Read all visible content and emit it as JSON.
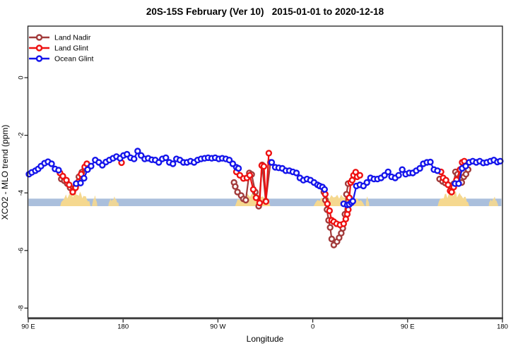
{
  "title": "20S-15S February (Ver 10)   2015-01-01 to 2020-12-18",
  "legend": {
    "position": "top-left",
    "items": [
      {
        "label": "Land Nadir",
        "color": "#A23B3B"
      },
      {
        "label": "Land Glint",
        "color": "#EE1111"
      },
      {
        "label": "Ocean Glint",
        "color": "#1414EB"
      }
    ]
  },
  "axes": {
    "x": {
      "label": "Longitude"
    },
    "y": {
      "label": "XCO2 - MLO trend (ppm)"
    }
  },
  "chart_data": {
    "type": "line",
    "marker": "open-circle",
    "grid": false,
    "title": "20S-15S February (Ver 10)  2015-01-01 to 2020-12-18",
    "xlabel": "Longitude",
    "ylabel": "XCO2 - MLO trend (ppm)",
    "xlim": [
      90,
      540
    ],
    "ylim": [
      -8.34,
      1.79
    ],
    "x_tick_values": [
      90,
      180,
      270,
      360,
      450,
      540
    ],
    "x_tick_labels": [
      "90 E",
      "180",
      "90 W",
      "0",
      "90 E",
      "180"
    ],
    "y_tick_values": [
      0,
      -2,
      -4,
      -6,
      -8
    ],
    "y_tick_labels": [
      "0",
      "-2",
      "-4",
      "-6",
      "-8"
    ],
    "ocean_band": {
      "y_top": -4.2,
      "y_bottom": -4.46,
      "color": "#AABFDC"
    },
    "land_color": "#F5D88F",
    "land_bands": [
      {
        "x0": 120.3,
        "x1": 149.0,
        "peak": -4.03
      },
      {
        "x0": 150.5,
        "x1": 155.5,
        "peak": -4.18,
        "minor": true
      },
      {
        "x0": 166.0,
        "x1": 176.0,
        "peak": -4.2,
        "minor": true
      },
      {
        "x0": 286.3,
        "x1": 319.7,
        "peak": -4.07
      },
      {
        "x0": 360.8,
        "x1": 409.4,
        "peak": -4.08
      },
      {
        "x0": 410.3,
        "x1": 413.6,
        "peak": -4.18,
        "minor": true
      },
      {
        "x0": 478.5,
        "x1": 508.5,
        "peak": -4.03
      },
      {
        "x0": 527.0,
        "x1": 536.0,
        "peak": -4.2,
        "minor": true
      }
    ],
    "series": [
      {
        "name": "Land Nadir",
        "color": "#A23B3B",
        "segments": [
          [
            [
              121.4,
              -3.52
            ],
            [
              124.2,
              -3.58
            ],
            [
              127.0,
              -3.68
            ],
            [
              129.7,
              -3.82
            ],
            [
              132.5,
              -3.92
            ],
            [
              135.2,
              -3.75
            ],
            [
              138.0,
              -3.44
            ],
            [
              140.9,
              -3.28
            ],
            [
              143.8,
              -3.15
            ]
          ],
          [
            [
              285.3,
              -3.64
            ],
            [
              286.4,
              -3.78
            ],
            [
              288.6,
              -3.97
            ],
            [
              292.0,
              -4.09
            ],
            [
              294.2,
              -4.21
            ],
            [
              296.4,
              -4.25
            ],
            [
              299.8,
              -3.31
            ],
            [
              302.0,
              -3.36
            ],
            [
              305.4,
              -3.97
            ],
            [
              308.7,
              -4.46
            ],
            [
              312.0,
              -3.03
            ],
            [
              315.4,
              -4.29
            ],
            [
              319.8,
              -2.94
            ]
          ],
          [
            [
              370.5,
              -3.97
            ],
            [
              372.0,
              -4.25
            ],
            [
              373.5,
              -4.58
            ],
            [
              375.0,
              -4.95
            ],
            [
              376.5,
              -5.2
            ],
            [
              378.0,
              -5.6
            ],
            [
              380.0,
              -5.81
            ],
            [
              383.0,
              -5.69
            ],
            [
              385.0,
              -5.56
            ],
            [
              387.0,
              -5.4
            ],
            [
              388.5,
              -5.23
            ],
            [
              390.5,
              -4.74
            ],
            [
              392.0,
              -4.05
            ],
            [
              393.5,
              -3.68
            ]
          ],
          [
            [
              480.4,
              -3.52
            ],
            [
              483.1,
              -3.6
            ],
            [
              485.8,
              -3.66
            ],
            [
              488.5,
              -3.72
            ],
            [
              491.2,
              -3.78
            ],
            [
              494.0,
              -3.68
            ],
            [
              495.4,
              -3.27
            ],
            [
              497.4,
              -3.35
            ],
            [
              500.1,
              -3.52
            ],
            [
              501.4,
              -3.64
            ],
            [
              503.4,
              -3.44
            ],
            [
              505.4,
              -3.35
            ],
            [
              507.4,
              -3.19
            ]
          ]
        ]
      },
      {
        "name": "Land Glint",
        "color": "#EE1111",
        "segments": [
          [
            [
              120.1,
              -3.31
            ],
            [
              122.8,
              -3.42
            ],
            [
              126.2,
              -3.56
            ],
            [
              128.8,
              -3.72
            ],
            [
              132.2,
              -3.97
            ],
            [
              134.9,
              -3.82
            ],
            [
              137.5,
              -3.62
            ],
            [
              140.2,
              -3.35
            ],
            [
              143.6,
              -3.1
            ],
            [
              145.6,
              -2.99
            ]
          ],
          [
            [
              178.5,
              -2.95
            ]
          ],
          [
            [
              287.5,
              -3.27
            ],
            [
              290.8,
              -3.39
            ],
            [
              294.2,
              -3.5
            ],
            [
              297.5,
              -3.48
            ],
            [
              300.2,
              -3.39
            ],
            [
              303.5,
              -3.88
            ],
            [
              306.2,
              -4.17
            ],
            [
              309.6,
              -4.35
            ],
            [
              311.6,
              -3.05
            ],
            [
              313.6,
              -3.08
            ],
            [
              315.6,
              -4.3
            ],
            [
              318.3,
              -2.62
            ]
          ],
          [
            [
              371.9,
              -4.05
            ],
            [
              373.9,
              -4.38
            ],
            [
              375.9,
              -4.62
            ],
            [
              377.9,
              -4.95
            ],
            [
              379.9,
              -5.0
            ],
            [
              382.6,
              -5.07
            ],
            [
              385.9,
              -5.11
            ],
            [
              389.3,
              -5.07
            ],
            [
              391.3,
              -4.91
            ],
            [
              392.7,
              -4.74
            ],
            [
              393.7,
              -4.58
            ],
            [
              394.7,
              -4.17
            ],
            [
              396.0,
              -3.64
            ],
            [
              397.4,
              -3.56
            ],
            [
              398.7,
              -3.39
            ],
            [
              400.7,
              -3.28
            ],
            [
              402.1,
              -3.44
            ],
            [
              404.7,
              -3.39
            ]
          ],
          [
            [
              481.7,
              -3.27
            ],
            [
              483.7,
              -3.48
            ],
            [
              486.4,
              -3.56
            ],
            [
              488.4,
              -3.72
            ],
            [
              490.4,
              -3.93
            ],
            [
              491.8,
              -3.97
            ],
            [
              493.8,
              -3.8
            ],
            [
              496.4,
              -3.55
            ],
            [
              499.8,
              -3.19
            ],
            [
              501.8,
              -2.94
            ],
            [
              503.8,
              -2.9
            ]
          ]
        ]
      },
      {
        "name": "Ocean Glint",
        "color": "#1414EB",
        "segments": [
          [
            [
              90.7,
              -3.35
            ],
            [
              93.3,
              -3.29
            ],
            [
              96.7,
              -3.23
            ],
            [
              99.4,
              -3.17
            ],
            [
              102.1,
              -3.07
            ],
            [
              105.4,
              -2.97
            ],
            [
              108.7,
              -2.92
            ],
            [
              112.1,
              -2.99
            ],
            [
              115.4,
              -3.17
            ],
            [
              118.8,
              -3.21
            ]
          ],
          [
            [
              135.5,
              -3.68
            ],
            [
              139.6,
              -3.66
            ],
            [
              142.9,
              -3.49
            ],
            [
              146.3,
              -3.19
            ],
            [
              149.6,
              -3.07
            ],
            [
              153.6,
              -2.86
            ],
            [
              157.0,
              -2.94
            ],
            [
              160.3,
              -3.04
            ],
            [
              163.7,
              -2.93
            ],
            [
              167.0,
              -2.86
            ],
            [
              170.4,
              -2.8
            ],
            [
              173.7,
              -2.74
            ],
            [
              177.1,
              -2.8
            ],
            [
              180.4,
              -2.7
            ],
            [
              183.7,
              -2.66
            ],
            [
              187.1,
              -2.78
            ],
            [
              190.4,
              -2.82
            ],
            [
              193.8,
              -2.55
            ],
            [
              197.1,
              -2.7
            ],
            [
              200.5,
              -2.82
            ],
            [
              203.8,
              -2.8
            ],
            [
              207.2,
              -2.85
            ],
            [
              210.5,
              -2.86
            ],
            [
              213.9,
              -2.94
            ],
            [
              217.2,
              -2.82
            ],
            [
              220.6,
              -2.78
            ],
            [
              223.9,
              -2.94
            ],
            [
              227.3,
              -2.99
            ],
            [
              230.6,
              -2.82
            ],
            [
              233.9,
              -2.86
            ],
            [
              237.3,
              -2.94
            ],
            [
              240.6,
              -2.94
            ],
            [
              244.0,
              -2.9
            ],
            [
              247.3,
              -2.94
            ],
            [
              250.7,
              -2.86
            ],
            [
              254.0,
              -2.82
            ],
            [
              257.4,
              -2.8
            ],
            [
              260.7,
              -2.78
            ],
            [
              264.1,
              -2.8
            ],
            [
              267.4,
              -2.78
            ],
            [
              270.8,
              -2.82
            ],
            [
              274.1,
              -2.8
            ],
            [
              277.5,
              -2.82
            ],
            [
              280.8,
              -2.86
            ],
            [
              284.1,
              -2.99
            ],
            [
              287.5,
              -3.11
            ],
            [
              289.5,
              -3.15
            ]
          ],
          [
            [
              321.0,
              -2.94
            ],
            [
              324.4,
              -3.11
            ],
            [
              327.7,
              -3.13
            ],
            [
              331.1,
              -3.15
            ],
            [
              334.4,
              -3.23
            ],
            [
              337.8,
              -3.23
            ],
            [
              341.1,
              -3.27
            ],
            [
              344.5,
              -3.31
            ],
            [
              347.8,
              -3.48
            ],
            [
              351.1,
              -3.56
            ],
            [
              354.5,
              -3.52
            ],
            [
              357.8,
              -3.56
            ],
            [
              361.2,
              -3.64
            ],
            [
              364.5,
              -3.72
            ],
            [
              366.5,
              -3.76
            ],
            [
              369.2,
              -3.8
            ],
            [
              371.2,
              -3.88
            ]
          ],
          [
            [
              389.3,
              -4.38
            ],
            [
              392.7,
              -4.42
            ],
            [
              394.7,
              -4.4
            ],
            [
              396.7,
              -4.34
            ],
            [
              398.0,
              -4.29
            ],
            [
              401.4,
              -3.76
            ],
            [
              404.7,
              -3.72
            ],
            [
              408.1,
              -3.76
            ],
            [
              411.4,
              -3.64
            ],
            [
              414.8,
              -3.48
            ],
            [
              418.1,
              -3.52
            ],
            [
              421.4,
              -3.52
            ],
            [
              424.8,
              -3.48
            ],
            [
              428.1,
              -3.39
            ],
            [
              431.5,
              -3.27
            ],
            [
              434.8,
              -3.44
            ],
            [
              438.2,
              -3.48
            ],
            [
              441.5,
              -3.39
            ],
            [
              444.9,
              -3.19
            ],
            [
              448.2,
              -3.35
            ],
            [
              451.6,
              -3.31
            ],
            [
              454.9,
              -3.31
            ],
            [
              458.2,
              -3.23
            ],
            [
              461.6,
              -3.15
            ],
            [
              464.9,
              -2.99
            ],
            [
              468.3,
              -2.94
            ],
            [
              471.6,
              -2.93
            ],
            [
              475.0,
              -3.19
            ],
            [
              478.3,
              -3.23
            ]
          ],
          [
            [
              495.1,
              -3.68
            ],
            [
              498.4,
              -3.68
            ],
            [
              501.8,
              -3.15
            ],
            [
              505.1,
              -3.07
            ],
            [
              508.5,
              -2.94
            ],
            [
              511.8,
              -2.9
            ],
            [
              515.2,
              -2.94
            ],
            [
              518.5,
              -2.9
            ],
            [
              521.8,
              -2.96
            ],
            [
              525.2,
              -2.94
            ],
            [
              528.5,
              -2.9
            ],
            [
              531.9,
              -2.86
            ],
            [
              535.2,
              -2.93
            ],
            [
              537.9,
              -2.9
            ]
          ]
        ]
      }
    ]
  }
}
